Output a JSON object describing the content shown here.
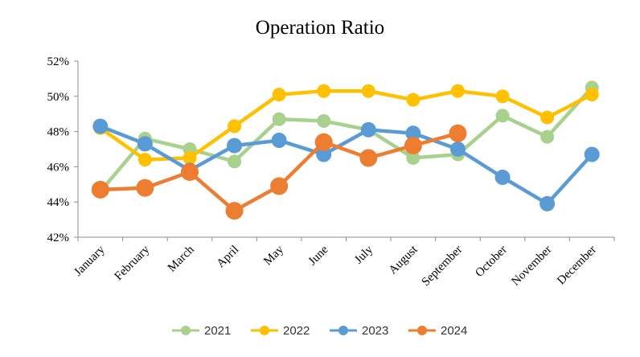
{
  "chart_data": {
    "type": "line",
    "title": "Operation Ratio",
    "xlabel": "",
    "ylabel": "",
    "categories": [
      "January",
      "February",
      "March",
      "April",
      "May",
      "June",
      "July",
      "August",
      "September",
      "October",
      "November",
      "December"
    ],
    "ylim": [
      0.42,
      0.52
    ],
    "yticks": [
      "42%",
      "44%",
      "46%",
      "48%",
      "50%",
      "52%"
    ],
    "grid": false,
    "legend_position": "bottom",
    "series": [
      {
        "name": "2021",
        "color": "#a9d18e",
        "values": [
          0.446,
          0.476,
          0.47,
          0.463,
          0.487,
          0.486,
          0.481,
          0.465,
          0.467,
          0.489,
          0.477,
          0.505
        ]
      },
      {
        "name": "2022",
        "color": "#ffc000",
        "values": [
          0.482,
          0.464,
          0.465,
          0.483,
          0.501,
          0.503,
          0.503,
          0.498,
          0.503,
          0.5,
          0.488,
          0.501
        ]
      },
      {
        "name": "2023",
        "color": "#5b9bd5",
        "values": [
          0.483,
          0.473,
          0.458,
          0.472,
          0.475,
          0.467,
          0.481,
          0.479,
          0.47,
          0.454,
          0.439,
          0.467
        ]
      },
      {
        "name": "2024",
        "color": "#ed7d31",
        "values": [
          0.447,
          0.448,
          0.457,
          0.435,
          0.449,
          0.474,
          0.465,
          0.472,
          0.479,
          null,
          null,
          null
        ]
      }
    ]
  }
}
